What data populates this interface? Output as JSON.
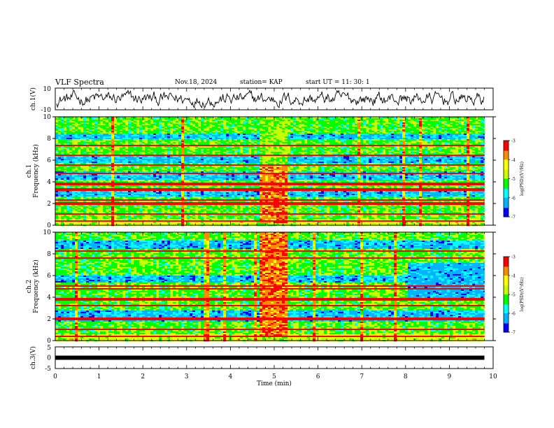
{
  "header": {
    "title": "VLF Spectra",
    "date": "Nov.18, 2024",
    "station": "station= KAP",
    "start": "start  UT =  11: 30: 1"
  },
  "chart_data": {
    "type": "heatmap",
    "x_axis": {
      "label": "Time (min)",
      "range": [
        0,
        10
      ],
      "ticks": [
        "0",
        "1",
        "2",
        "3",
        "4",
        "5",
        "6",
        "7",
        "8",
        "9",
        "10"
      ]
    },
    "ch1_waveform": {
      "ylabel": "ch.1(V)",
      "ylim": [
        -10,
        10
      ],
      "ticks": [
        "10",
        "-10"
      ]
    },
    "spectrogram_ch1": {
      "ylabel_channel": "ch.1",
      "ylabel": "Frequency (kHz)",
      "ylim": [
        0,
        10
      ],
      "ticks": [
        "0",
        "2",
        "4",
        "6",
        "8",
        "10"
      ],
      "data_end_min": 9.8,
      "strong_lines_khz": [
        0.4,
        1.0,
        2.0,
        2.3,
        3.3,
        3.8,
        4.8,
        5.5,
        6.5,
        7.4
      ],
      "blue_band_khz": [
        [
          2.6,
          3.3
        ],
        [
          4.2,
          5.0
        ],
        [
          5.7,
          6.4
        ],
        [
          8.0,
          8.4
        ]
      ],
      "burst": {
        "t_min": [
          4.65,
          5.3
        ],
        "f_khz": [
          0.2,
          5.5
        ]
      }
    },
    "spectrogram_ch2": {
      "ylabel_channel": "ch.2",
      "ylabel": "Frequency (kHz)",
      "ylim": [
        0,
        10
      ],
      "ticks": [
        "0",
        "2",
        "4",
        "6",
        "8",
        "10"
      ],
      "data_end_min": 9.8,
      "strong_lines_khz": [
        0.4,
        1.0,
        2.0,
        3.2,
        3.8,
        4.8,
        5.0,
        7.6,
        8.3
      ],
      "blue_band_khz": [
        [
          1.8,
          2.8
        ],
        [
          5.3,
          6.0
        ],
        [
          8.5,
          9.2
        ]
      ],
      "late_blue": {
        "t_min": [
          8.0,
          9.8
        ],
        "f_khz": [
          3.7,
          7.2
        ]
      },
      "burst": {
        "t_min": [
          4.65,
          5.3
        ],
        "f_khz": [
          0.3,
          10.0
        ]
      }
    },
    "colorbar": {
      "label": "log(PSD)(V²/Hz)",
      "range": [
        -7,
        -3
      ],
      "ticks": [
        "-3",
        "-4",
        "-5",
        "-6",
        "-7"
      ],
      "colors": [
        "#0000ff",
        "#00b4ff",
        "#00ffff",
        "#00ff00",
        "#c8ff00",
        "#ffff00",
        "#ff8c00",
        "#ff0000"
      ]
    },
    "ch3": {
      "ylabel": "ch.3(V)",
      "ylim": [
        -5,
        5
      ],
      "ticks": [
        "5",
        "0",
        "-5"
      ],
      "level": 0
    }
  }
}
